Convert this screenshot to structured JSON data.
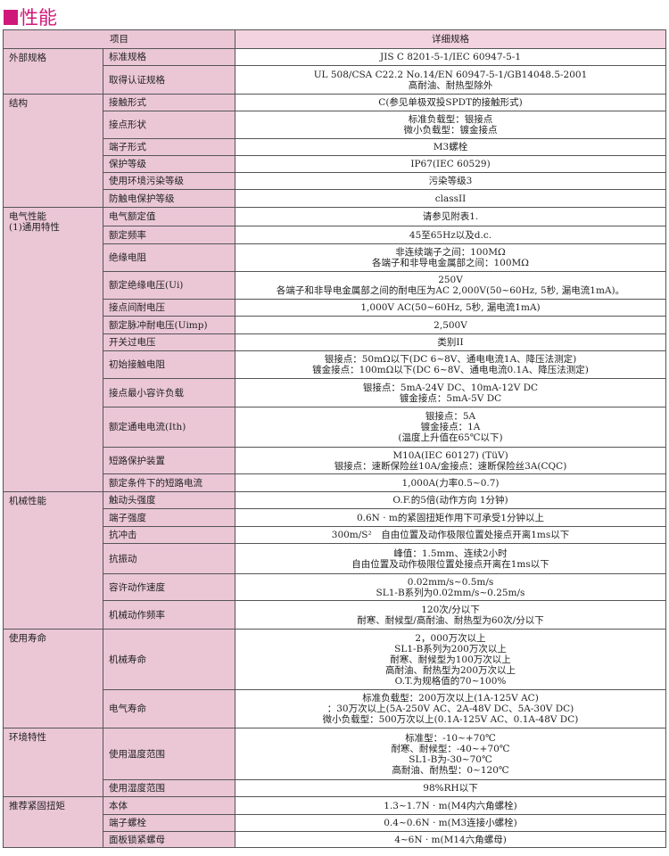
{
  "title": "性能",
  "header": {
    "item": "项目",
    "detail": "详细规格"
  },
  "accent": "#d0187a",
  "groups": [
    {
      "name": [
        "外部规格"
      ],
      "rows": [
        {
          "label": "标准规格",
          "lines": [
            "JIS C 8201-5-1/IEC 60947-5-1"
          ]
        },
        {
          "label": "取得认证规格",
          "lines": [
            "UL 508/CSA C22.2 No.14/EN 60947-5-1/GB14048.5-2001",
            "高耐油、耐热型除外"
          ]
        }
      ]
    },
    {
      "name": [
        "结构"
      ],
      "rows": [
        {
          "label": "接触形式",
          "lines": [
            "C(参见单极双投SPDT的接触形式)"
          ]
        },
        {
          "label": "接点形状",
          "lines": [
            "标准负载型：银接点",
            "微小负载型：镀金接点"
          ]
        },
        {
          "label": "端子形式",
          "lines": [
            "M3螺栓"
          ]
        },
        {
          "label": "保护等级",
          "lines": [
            "IP67(IEC 60529)"
          ]
        },
        {
          "label": "使用环境污染等级",
          "lines": [
            "污染等级3"
          ]
        },
        {
          "label": "防触电保护等级",
          "lines": [
            "classII"
          ]
        }
      ]
    },
    {
      "name": [
        "电气性能",
        "(1)通用特性"
      ],
      "rows": [
        {
          "label": "电气额定值",
          "lines": [
            "请参见附表1."
          ]
        },
        {
          "label": "额定频率",
          "lines": [
            "45至65Hz以及d.c."
          ]
        },
        {
          "label": "绝缘电阻",
          "lines": [
            "非连续端子之间：100MΩ",
            "各端子和非导电金属部之间：100MΩ"
          ]
        },
        {
          "label": "额定绝缘电压(Ui)",
          "lines": [
            "250V",
            "各端子和非导电金属部之间的耐电压为AC 2,000V(50~60Hz, 5秒, 漏电流1mA)。"
          ]
        },
        {
          "label": "接点间耐电压",
          "lines": [
            "1,000V AC(50~60Hz, 5秒, 漏电流1mA)"
          ]
        },
        {
          "label": "额定脉冲耐电压(Uimp)",
          "lines": [
            "2,500V"
          ]
        },
        {
          "label": "开关过电压",
          "lines": [
            "类别II"
          ]
        },
        {
          "label": "初始接触电阻",
          "lines": [
            "银接点：50mΩ以下(DC 6~8V、通电电流1A、降压法测定)",
            "镀金接点：100mΩ以下(DC 6~8V、通电电流0.1A、降压法测定)"
          ]
        },
        {
          "label": "接点最小容许负载",
          "lines": [
            "银接点：5mA-24V DC、10mA-12V DC",
            "镀金接点：5mA-5V DC"
          ]
        },
        {
          "label": "额定通电电流(Ith)",
          "lines": [
            "银接点：5A",
            "镀金接点：1A",
            "(温度上升值在65℃以下)"
          ]
        },
        {
          "label": "短路保护装置",
          "lines": [
            "M10A(IEC 60127) (TüV)",
            "银接点：速断保险丝10A/金接点：速断保险丝3A(CQC)"
          ]
        },
        {
          "label": "额定条件下的短路电流",
          "lines": [
            "1,000A(力率0.5~0.7)"
          ]
        }
      ]
    },
    {
      "name": [
        "机械性能"
      ],
      "rows": [
        {
          "label": "触动头强度",
          "lines": [
            "O.F.的5倍(动作方向 1分钟)"
          ]
        },
        {
          "label": "端子强度",
          "lines": [
            "0.6N · m的紧固扭矩作用下可承受1分钟以上"
          ]
        },
        {
          "label": "抗冲击",
          "lines": [
            "300m/S²　自由位置及动作极限位置处接点开离1ms以下"
          ]
        },
        {
          "label": "抗振动",
          "lines": [
            "峰值：1.5mm、连续2小时",
            "自由位置及动作极限位置处接点开离在1ms以下"
          ]
        },
        {
          "label": "容许动作速度",
          "lines": [
            "0.02mm/s~0.5m/s",
            "SL1-B系列为0.02mm/s~0.25m/s"
          ]
        },
        {
          "label": "机械动作频率",
          "lines": [
            "120次/分以下",
            "耐寒、耐候型/高耐油、耐热型为60次/分以下"
          ]
        }
      ]
    },
    {
      "name": [
        "使用寿命"
      ],
      "rows": [
        {
          "label": "机械寿命",
          "lines": [
            "2，000万次以上",
            "SL1-B系列为200万次以上",
            "耐寒、耐候型为100万次以上",
            "高耐油、耐热型为200万次以上",
            "O.T.为规格值的70~100%"
          ]
        },
        {
          "label": "电气寿命",
          "lines": [
            "标准负载型：200万次以上(1A-125V AC)",
            "：30万次以上(5A-250V AC、2A-48V DC、5A-30V DC)",
            "微小负载型：500万次以上(0.1A-125V AC、0.1A-48V DC)"
          ]
        }
      ]
    },
    {
      "name": [
        "环境特性"
      ],
      "rows": [
        {
          "label": "使用温度范围",
          "lines": [
            "标准型：-10~+70℃",
            "耐寒、耐候型：-40~+70℃",
            "SL1-B为-30~70℃",
            "高耐油、耐热型：0~120℃"
          ]
        },
        {
          "label": "使用湿度范围",
          "lines": [
            "98%RH以下"
          ]
        }
      ]
    },
    {
      "name": [
        "推荐紧固扭矩"
      ],
      "rows": [
        {
          "label": "本体",
          "lines": [
            "1.3~1.7N · m(M4内六角螺栓)"
          ]
        },
        {
          "label": "端子螺栓",
          "lines": [
            "0.4~0.6N · m(M3连接小螺栓)"
          ]
        },
        {
          "label": "面板锁紧螺母",
          "lines": [
            "4~6N · m(M14六角螺母)"
          ]
        }
      ]
    }
  ]
}
